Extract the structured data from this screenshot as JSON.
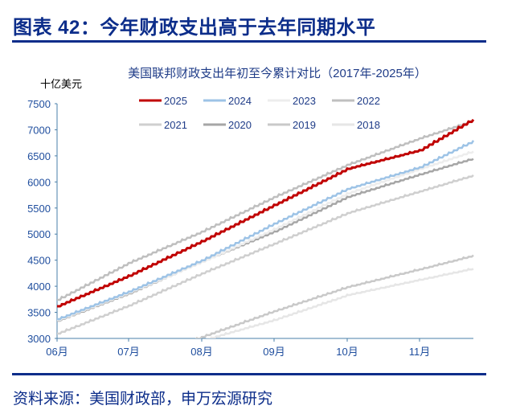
{
  "header": {
    "title": "图表 42：今年财政支出高于去年同期水平"
  },
  "footer": {
    "source": "资料来源：美国财政部，申万宏源研究"
  },
  "chart_data": {
    "type": "line",
    "title": "美国联邦财政支出年初至今累计对比（2017年-2025年）",
    "ylabel": "十亿美元",
    "ylim": [
      3000,
      7500
    ],
    "yticks": [
      3000,
      3500,
      4000,
      4500,
      5000,
      5500,
      6000,
      6500,
      7000,
      7500
    ],
    "xticks": [
      "06月",
      "07月",
      "08月",
      "09月",
      "10月",
      "11月"
    ],
    "x": [
      "06-01",
      "07-01",
      "08-01",
      "09-01",
      "10-01",
      "11-01",
      "11-22"
    ],
    "grid": false,
    "legend": "top",
    "series": [
      {
        "name": "2025",
        "color": "#C00000",
        "values": [
          3617,
          4202,
          4865,
          5559,
          6252,
          6607,
          7208
        ]
      },
      {
        "name": "2024",
        "color": "#9DC3E6",
        "values": [
          3370,
          3900,
          4500,
          5204,
          5867,
          6283,
          6790
        ]
      },
      {
        "name": "2023",
        "color": "#EDEDED",
        "values": [
          3350,
          3880,
          4470,
          5100,
          5780,
          6250,
          6591
        ]
      },
      {
        "name": "2022",
        "color": "#BFBFBF",
        "values": [
          3740,
          4449,
          5050,
          5713,
          6330,
          6838,
          7177
        ]
      },
      {
        "name": "2021",
        "color": "#CFCFCF",
        "values": [
          3092,
          3632,
          4249,
          4819,
          5404,
          5820,
          6130
        ]
      },
      {
        "name": "2020",
        "color": "#A6A6A6",
        "values": [
          3339,
          3863,
          4480,
          5050,
          5713,
          6145,
          6453
        ]
      },
      {
        "name": "2019",
        "color": "#C9C9C9",
        "values": [
          null,
          null,
          3030,
          3524,
          3986,
          4326,
          4589
        ]
      },
      {
        "name": "2018",
        "color": "#E6E6E6",
        "values": [
          null,
          null,
          2960,
          3355,
          3832,
          4125,
          4341
        ]
      }
    ]
  }
}
